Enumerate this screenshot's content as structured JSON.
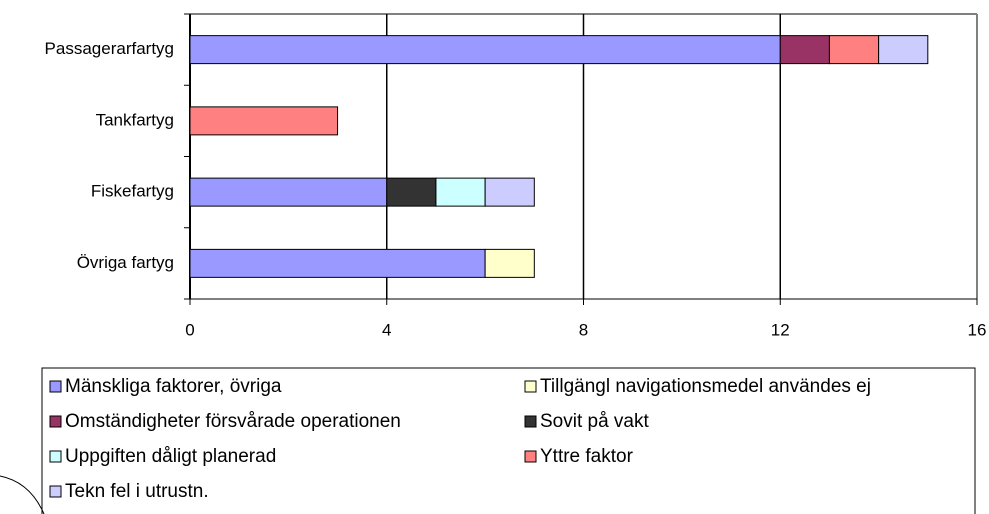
{
  "chart_data": {
    "type": "bar",
    "orientation": "horizontal",
    "stacked": true,
    "categories": [
      "Passagerarfartyg",
      "Tankfartyg",
      "Fiskefartyg",
      "Övriga fartyg"
    ],
    "series": [
      {
        "name": "Mänskliga faktorer, övriga",
        "color": "#9999ff",
        "values": [
          12,
          0,
          4,
          6
        ]
      },
      {
        "name": "Tillgängl navigationsmedel användes ej",
        "color": "#ffffcc",
        "values": [
          0,
          0,
          0,
          1
        ]
      },
      {
        "name": "Omständigheter försvårade operationen",
        "color": "#993366",
        "values": [
          1,
          0,
          0,
          0
        ]
      },
      {
        "name": "Sovit på vakt",
        "color": "#333333",
        "values": [
          0,
          0,
          1,
          0
        ]
      },
      {
        "name": "Uppgiften dåligt planerad",
        "color": "#ccffff",
        "values": [
          0,
          0,
          1,
          0
        ]
      },
      {
        "name": "Yttre faktor",
        "color": "#ff8080",
        "values": [
          1,
          3,
          0,
          0
        ]
      },
      {
        "name": "Tekn fel i utrustn.",
        "color": "#ccccff",
        "values": [
          1,
          0,
          1,
          0
        ]
      }
    ],
    "xlim": [
      0,
      16
    ],
    "xticks": [
      0,
      4,
      8,
      12,
      16
    ],
    "grid": true
  }
}
